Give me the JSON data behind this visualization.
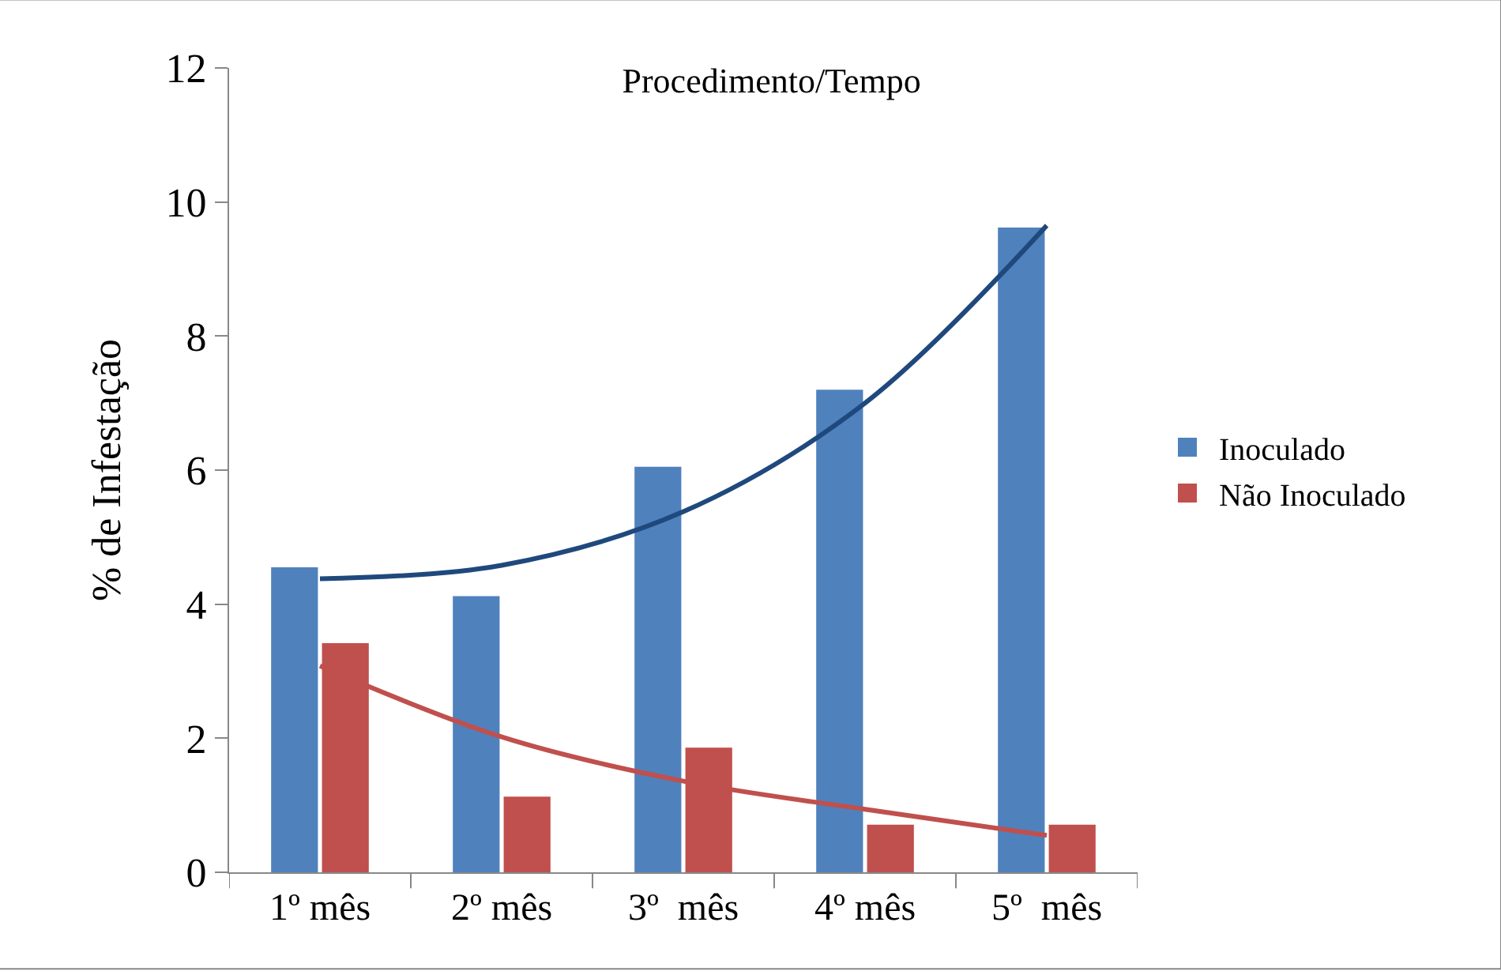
{
  "chart_data": {
    "type": "bar",
    "title": "Procedimento/Tempo",
    "ylabel": "% de Infestação",
    "categories": [
      "1º mês",
      "2º mês",
      "3º  mês",
      "4º mês",
      "5º  mês"
    ],
    "series": [
      {
        "name": "Inoculado",
        "color": "#4f81bd",
        "values": [
          4.55,
          4.12,
          6.05,
          7.2,
          9.62
        ]
      },
      {
        "name": "Não Inoculado",
        "color": "#c0504d",
        "values": [
          3.42,
          1.13,
          1.86,
          0.71,
          0.71
        ]
      },
      {
        "type": "line",
        "color": "#1f497d",
        "values": [
          4.38,
          4.58,
          5.38,
          7.0,
          9.65
        ]
      },
      {
        "type": "line",
        "color": "#c0504d",
        "values": [
          3.08,
          2.02,
          1.36,
          0.94,
          0.55
        ]
      }
    ],
    "ylim": [
      0,
      12
    ],
    "yticks": [
      0,
      2,
      4,
      6,
      8,
      10,
      12
    ],
    "grid": false,
    "legend": "right",
    "line_style": "solid",
    "marker": "none"
  }
}
